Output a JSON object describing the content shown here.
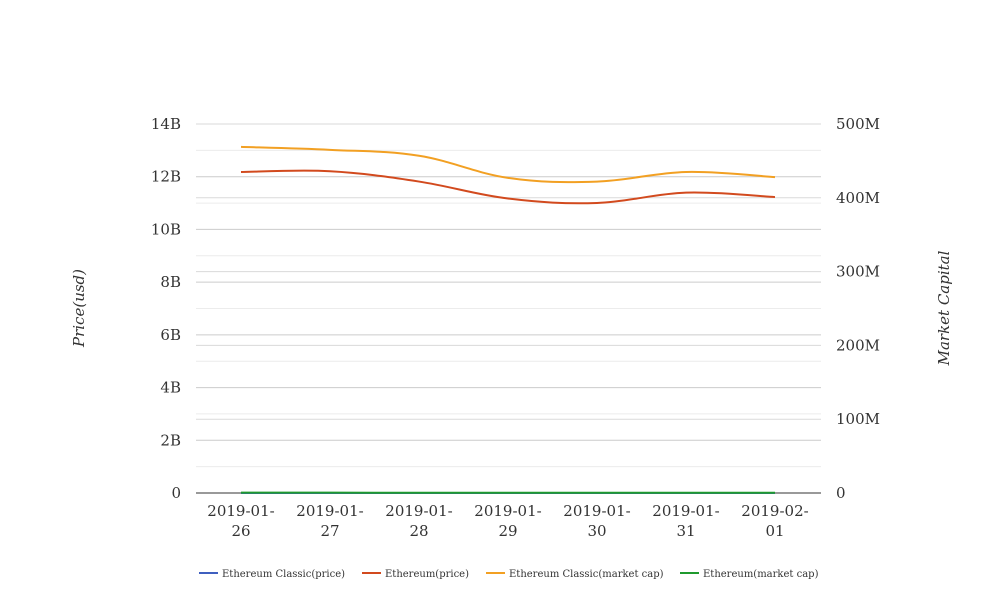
{
  "chart_data": {
    "type": "line",
    "categories": [
      "2019-01-26",
      "2019-01-27",
      "2019-01-28",
      "2019-01-29",
      "2019-01-30",
      "2019-01-31",
      "2019-02-01"
    ],
    "category_labels": [
      [
        "2019-01-",
        "26"
      ],
      [
        "2019-01-",
        "27"
      ],
      [
        "2019-01-",
        "28"
      ],
      [
        "2019-01-",
        "29"
      ],
      [
        "2019-01-",
        "30"
      ],
      [
        "2019-01-",
        "31"
      ],
      [
        "2019-02-",
        "01"
      ]
    ],
    "left_axis": {
      "label": "Price(usd)",
      "ylim": [
        0,
        14000000000
      ],
      "ticks": [
        0,
        2000000000,
        4000000000,
        6000000000,
        8000000000,
        10000000000,
        12000000000,
        14000000000
      ],
      "tick_labels": [
        "0",
        "2B",
        "4B",
        "6B",
        "8B",
        "10B",
        "12B",
        "14B"
      ]
    },
    "right_axis": {
      "label": "Market Capital",
      "ylim": [
        0,
        500000000
      ],
      "ticks": [
        0,
        100000000,
        200000000,
        300000000,
        400000000,
        500000000
      ],
      "tick_labels": [
        "0",
        "100M",
        "200M",
        "300M",
        "400M",
        "500M"
      ]
    },
    "series": [
      {
        "name": "Ethereum Classic(price)",
        "axis": "left",
        "color": "#3f5fbf",
        "values": [
          4.4,
          4.5,
          4.3,
          4.1,
          4.0,
          4.2,
          4.1
        ]
      },
      {
        "name": "Ethereum(price)",
        "axis": "right",
        "color": "#d24a1e",
        "values": [
          435000000,
          436000000,
          422000000,
          399000000,
          393000000,
          407000000,
          401000000
        ]
      },
      {
        "name": "Ethereum Classic(market cap)",
        "axis": "right",
        "color": "#f2a023",
        "values": [
          469000000,
          465000000,
          457000000,
          427000000,
          422000000,
          435000000,
          428000000
        ]
      },
      {
        "name": "Ethereum(market cap)",
        "axis": "left",
        "color": "#1f9a2e",
        "values": [
          12000000,
          12000000,
          11000000,
          10000000,
          10000000,
          11000000,
          11000000
        ]
      }
    ],
    "grid": true,
    "legend_position": "bottom"
  }
}
